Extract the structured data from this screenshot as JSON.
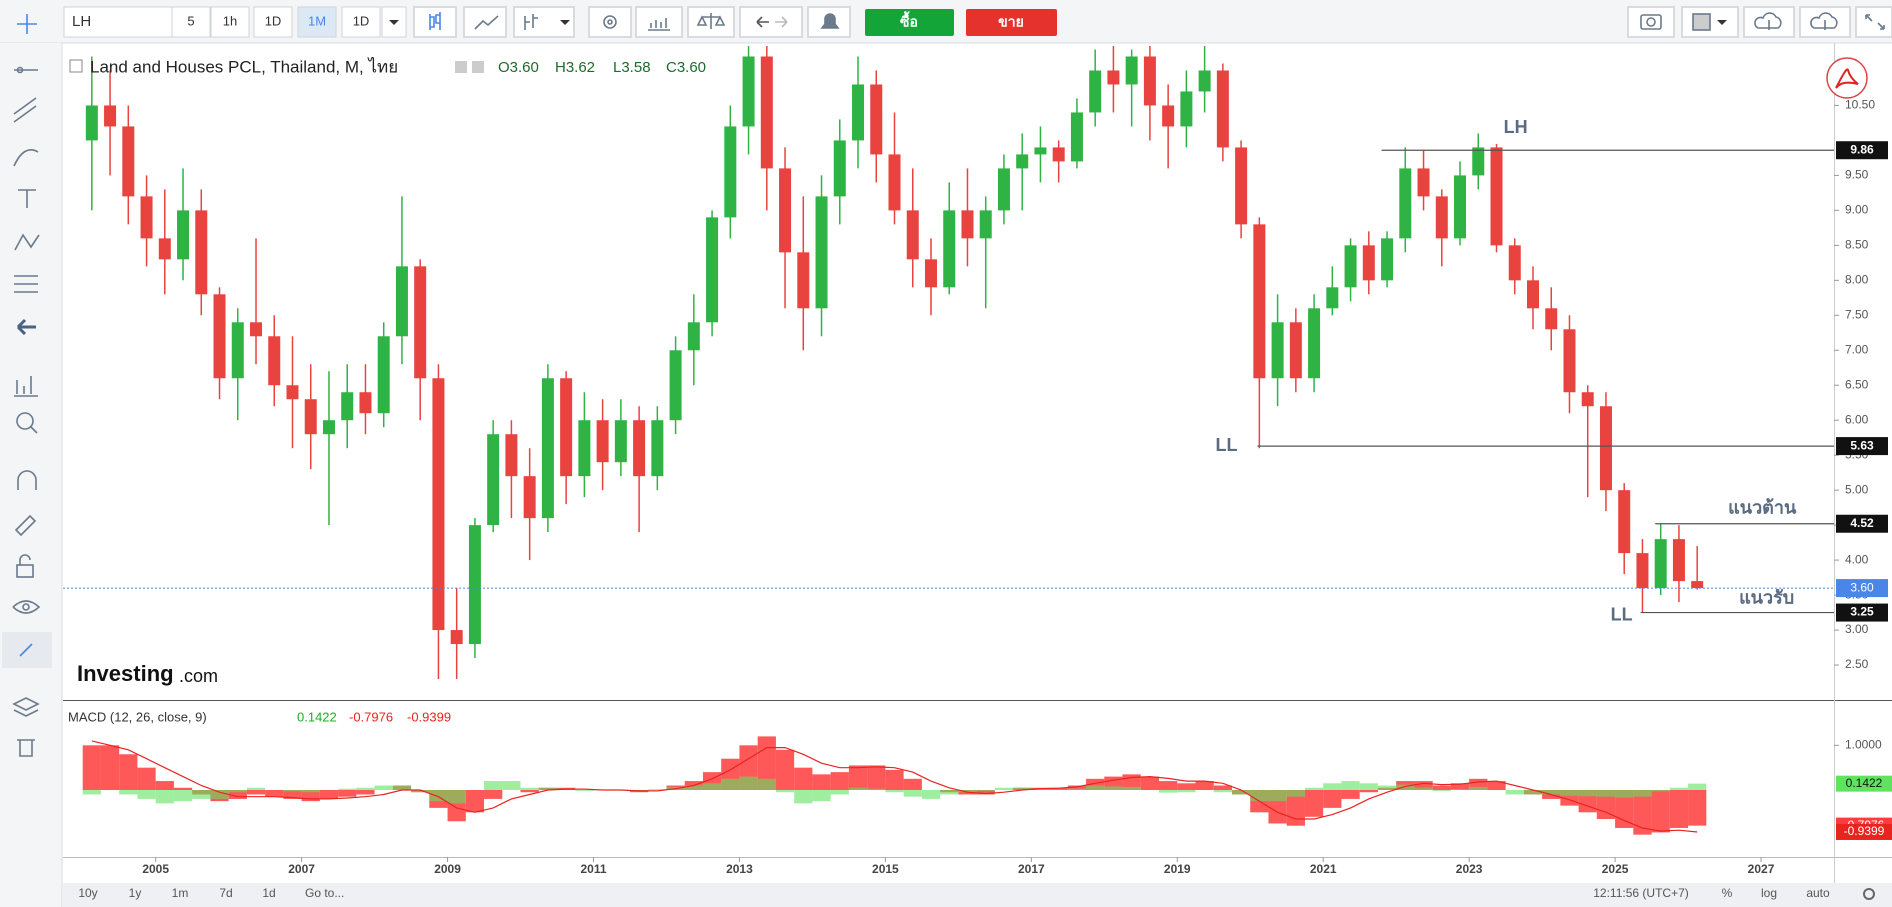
{
  "toolbar": {
    "symbol": "LH",
    "intervals": [
      "5",
      "1h",
      "1D",
      "1M",
      "1D"
    ],
    "buy": "ซื้อ",
    "sell": "ขาย"
  },
  "bottom_bar": {
    "ranges": [
      "10y",
      "1y",
      "1m",
      "7d",
      "1d"
    ],
    "goto": "Go to...",
    "time": "12:11:56 (UTC+7)",
    "options": [
      "%",
      "log",
      "auto"
    ]
  },
  "watermark": [
    "Investing",
    ".com"
  ],
  "chart_data": [
    {
      "type": "candlestick",
      "title": "Land and Houses PCL, Thailand, M, ไทย",
      "legend": [
        "O3.60",
        "H3.62",
        "L3.58",
        "C3.60"
      ],
      "up_color": "#2fb344",
      "down_color": "#e8433f",
      "xlim": [
        2003.73,
        2028.0
      ],
      "xticks": [
        2005,
        2007,
        2009,
        2011,
        2013,
        2015,
        2017,
        2019,
        2021,
        2023,
        2025,
        2027
      ],
      "ylim": [
        2.0,
        11.35
      ],
      "yticks": [
        {
          "value": 2.5,
          "label": "2.50"
        },
        {
          "value": 3,
          "label": "3.00"
        },
        {
          "value": 3.5,
          "label": "3.50"
        },
        {
          "value": 4,
          "label": "4.00"
        },
        {
          "value": 4.5,
          "label": "4.50"
        },
        {
          "value": 5,
          "label": "5.00"
        },
        {
          "value": 5.5,
          "label": "5.50"
        },
        {
          "value": 6,
          "label": "6.00"
        },
        {
          "value": 6.5,
          "label": "6.50"
        },
        {
          "value": 7,
          "label": "7.00"
        },
        {
          "value": 7.5,
          "label": "7.50"
        },
        {
          "value": 8,
          "label": "8.00"
        },
        {
          "value": 8.5,
          "label": "8.50"
        },
        {
          "value": 9,
          "label": "9.00"
        },
        {
          "value": 9.5,
          "label": "9.50"
        },
        {
          "value": 10.5,
          "label": "10.50"
        }
      ],
      "x": [
        2004.125,
        2004.375,
        2004.625,
        2004.875,
        2005.125,
        2005.375,
        2005.625,
        2005.875,
        2006.125,
        2006.375,
        2006.625,
        2006.875,
        2007.125,
        2007.375,
        2007.625,
        2007.875,
        2008.125,
        2008.375,
        2008.625,
        2008.875,
        2009.125,
        2009.375,
        2009.625,
        2009.875,
        2010.125,
        2010.375,
        2010.625,
        2010.875,
        2011.125,
        2011.375,
        2011.625,
        2011.875,
        2012.125,
        2012.375,
        2012.625,
        2012.875,
        2013.125,
        2013.375,
        2013.625,
        2013.875,
        2014.125,
        2014.375,
        2014.625,
        2014.875,
        2015.125,
        2015.375,
        2015.625,
        2015.875,
        2016.125,
        2016.375,
        2016.625,
        2016.875,
        2017.125,
        2017.375,
        2017.625,
        2017.875,
        2018.125,
        2018.375,
        2018.625,
        2018.875,
        2019.125,
        2019.375,
        2019.625,
        2019.875,
        2020.125,
        2020.375,
        2020.625,
        2020.875,
        2021.125,
        2021.375,
        2021.625,
        2021.875,
        2022.125,
        2022.375,
        2022.625,
        2022.875,
        2023.125,
        2023.375,
        2023.625,
        2023.875,
        2024.125,
        2024.375,
        2024.625,
        2024.875,
        2025.125,
        2025.375,
        2025.625,
        2025.875,
        2026.125
      ],
      "open": [
        10.0,
        10.5,
        10.2,
        9.2,
        8.6,
        8.3,
        9.0,
        7.8,
        6.6,
        7.4,
        7.2,
        6.5,
        6.3,
        5.8,
        6.0,
        6.4,
        6.1,
        7.2,
        8.2,
        6.6,
        3.0,
        2.8,
        4.5,
        5.8,
        5.2,
        4.6,
        6.6,
        5.2,
        6.0,
        5.4,
        6.0,
        5.2,
        6.0,
        7.0,
        7.4,
        8.9,
        10.2,
        11.2,
        9.6,
        8.4,
        7.6,
        9.2,
        10.0,
        10.8,
        9.8,
        9.0,
        8.3,
        7.9,
        9.0,
        8.6,
        9.0,
        9.6,
        9.8,
        9.9,
        9.7,
        10.4,
        11.0,
        10.8,
        11.2,
        10.5,
        10.2,
        10.7,
        11.0,
        9.9,
        8.8,
        6.6,
        7.4,
        6.6,
        7.6,
        7.9,
        8.5,
        8.0,
        8.6,
        9.6,
        9.2,
        8.6,
        9.5,
        9.9,
        8.5,
        8.0,
        7.6,
        7.3,
        6.4,
        6.2,
        5.0,
        4.1,
        3.6,
        4.3,
        3.7
      ],
      "high": [
        11.2,
        11.0,
        10.5,
        9.5,
        9.3,
        9.6,
        9.3,
        7.9,
        7.6,
        8.6,
        7.5,
        7.2,
        6.8,
        6.7,
        6.8,
        6.8,
        7.4,
        9.2,
        8.3,
        6.8,
        3.6,
        4.6,
        6.0,
        6.0,
        5.6,
        6.8,
        6.7,
        6.4,
        6.3,
        6.3,
        6.2,
        6.2,
        7.2,
        7.8,
        9.0,
        10.5,
        11.4,
        11.4,
        9.9,
        9.2,
        9.5,
        10.3,
        11.2,
        11.0,
        10.4,
        9.6,
        8.6,
        9.4,
        9.6,
        9.2,
        9.8,
        10.1,
        10.2,
        10.0,
        10.6,
        11.3,
        11.4,
        11.3,
        11.4,
        10.8,
        11.0,
        11.4,
        11.1,
        10.0,
        8.9,
        7.8,
        7.6,
        7.8,
        8.2,
        8.6,
        8.7,
        8.7,
        9.9,
        9.86,
        9.3,
        9.7,
        10.1,
        9.95,
        8.6,
        8.2,
        7.9,
        7.5,
        6.5,
        6.4,
        5.1,
        4.3,
        4.52,
        4.5,
        4.2
      ],
      "low": [
        9.0,
        9.5,
        8.8,
        8.2,
        7.8,
        8.0,
        7.5,
        6.3,
        6.0,
        6.8,
        6.2,
        5.6,
        5.3,
        4.5,
        5.6,
        5.8,
        5.9,
        6.8,
        6.0,
        2.3,
        2.3,
        2.6,
        4.4,
        4.6,
        4.0,
        4.4,
        4.8,
        4.9,
        5.0,
        5.2,
        4.4,
        5.0,
        5.8,
        6.5,
        7.2,
        8.6,
        9.8,
        9.0,
        7.6,
        7.0,
        7.2,
        8.8,
        9.6,
        9.4,
        8.8,
        7.9,
        7.5,
        7.8,
        8.2,
        7.6,
        8.8,
        9.0,
        9.4,
        9.4,
        9.6,
        10.2,
        10.4,
        10.2,
        10.0,
        9.6,
        9.9,
        10.4,
        9.7,
        8.6,
        5.6,
        6.2,
        6.4,
        6.4,
        7.5,
        7.7,
        7.8,
        7.9,
        8.4,
        9.0,
        8.2,
        8.5,
        9.3,
        8.4,
        7.8,
        7.3,
        7.0,
        6.1,
        4.9,
        4.7,
        3.8,
        3.25,
        3.5,
        3.4,
        3.58
      ],
      "close": [
        10.5,
        10.2,
        9.2,
        8.6,
        8.3,
        9.0,
        7.8,
        6.6,
        7.4,
        7.2,
        6.5,
        6.3,
        5.8,
        6.0,
        6.4,
        6.1,
        7.2,
        8.2,
        6.6,
        3.0,
        2.8,
        4.5,
        5.8,
        5.2,
        4.6,
        6.6,
        5.2,
        6.0,
        5.4,
        6.0,
        5.2,
        6.0,
        7.0,
        7.4,
        8.9,
        10.2,
        11.2,
        9.6,
        8.4,
        7.6,
        9.2,
        10.0,
        10.8,
        9.8,
        9.0,
        8.3,
        7.9,
        9.0,
        8.6,
        9.0,
        9.6,
        9.8,
        9.9,
        9.7,
        10.4,
        11.0,
        10.8,
        11.2,
        10.5,
        10.2,
        10.7,
        11.0,
        9.9,
        8.8,
        6.6,
        7.4,
        6.6,
        7.6,
        7.9,
        8.5,
        8.0,
        8.6,
        9.6,
        9.2,
        8.6,
        9.5,
        9.9,
        8.5,
        8.0,
        7.6,
        7.3,
        6.4,
        6.2,
        5.0,
        4.1,
        3.6,
        4.3,
        3.7,
        3.6
      ],
      "current": {
        "value": 3.6,
        "label": "3.60"
      },
      "current_color": "#4a86e8",
      "levels": [
        {
          "value": 9.86,
          "start": 2021.8,
          "notes": [
            "LH"
          ]
        },
        {
          "value": 5.63,
          "start": 2020.1,
          "notes": [
            "LL"
          ]
        },
        {
          "value": 4.52,
          "start": 2025.55,
          "notes": [
            "แนวต้าน"
          ]
        },
        {
          "value": 3.25,
          "start": 2025.35,
          "notes": [
            "LL",
            "แนวรับ"
          ]
        }
      ]
    },
    {
      "type": "macd",
      "title": "MACD (12, 26, close, 9)",
      "ylim": [
        -1.5,
        1.97
      ],
      "yticks": [
        {
          "value": 1,
          "label": "1.0000"
        }
      ],
      "histogram_color": "#5fe35f",
      "macd_color": "#ff3b3b",
      "signal_color": "#e8241f",
      "histogram": [
        -0.1,
        0.0,
        -0.1,
        -0.2,
        -0.3,
        -0.25,
        -0.2,
        -0.2,
        -0.05,
        0.05,
        0.0,
        -0.03,
        -0.05,
        0.0,
        0.03,
        0.05,
        0.1,
        0.1,
        -0.05,
        -0.25,
        -0.3,
        0.0,
        0.2,
        0.2,
        0.05,
        0.05,
        0.03,
        -0.02,
        0.0,
        0.0,
        -0.03,
        0.02,
        0.07,
        0.1,
        0.15,
        0.25,
        0.3,
        0.25,
        -0.05,
        -0.3,
        -0.25,
        -0.1,
        0.05,
        0.03,
        -0.05,
        -0.15,
        -0.2,
        -0.1,
        -0.05,
        -0.02,
        0.05,
        0.05,
        0.02,
        0.01,
        0.03,
        0.1,
        0.08,
        0.07,
        0.0,
        -0.06,
        -0.05,
        0.0,
        -0.05,
        -0.1,
        -0.25,
        -0.25,
        -0.15,
        0.05,
        0.15,
        0.2,
        0.15,
        0.1,
        0.12,
        0.05,
        -0.02,
        0.02,
        0.07,
        0.0,
        -0.1,
        -0.1,
        -0.1,
        -0.13,
        -0.14,
        -0.15,
        -0.17,
        -0.15,
        -0.03,
        0.05,
        0.1422
      ],
      "macd": [
        1.0,
        1.0,
        0.8,
        0.5,
        0.2,
        0.05,
        -0.1,
        -0.25,
        -0.2,
        -0.1,
        -0.15,
        -0.2,
        -0.25,
        -0.2,
        -0.15,
        -0.1,
        0.0,
        0.1,
        -0.05,
        -0.4,
        -0.7,
        -0.5,
        -0.2,
        0.0,
        -0.05,
        0.05,
        0.05,
        0.0,
        0.0,
        0.0,
        -0.05,
        0.0,
        0.1,
        0.2,
        0.4,
        0.7,
        1.0,
        1.2,
        0.9,
        0.5,
        0.35,
        0.4,
        0.55,
        0.55,
        0.45,
        0.25,
        0.0,
        -0.05,
        -0.1,
        -0.1,
        0.0,
        0.05,
        0.05,
        0.05,
        0.1,
        0.25,
        0.3,
        0.35,
        0.3,
        0.2,
        0.15,
        0.2,
        0.1,
        -0.1,
        -0.5,
        -0.75,
        -0.8,
        -0.6,
        -0.4,
        -0.2,
        -0.05,
        0.05,
        0.2,
        0.2,
        0.1,
        0.15,
        0.25,
        0.2,
        0.0,
        -0.1,
        -0.2,
        -0.35,
        -0.5,
        -0.65,
        -0.85,
        -1.0,
        -0.95,
        -0.85,
        -0.7976
      ],
      "signal": [
        1.1,
        1.0,
        0.9,
        0.7,
        0.5,
        0.3,
        0.1,
        -0.05,
        -0.15,
        -0.15,
        -0.15,
        -0.17,
        -0.2,
        -0.2,
        -0.18,
        -0.15,
        -0.1,
        0.0,
        0.0,
        -0.15,
        -0.4,
        -0.5,
        -0.4,
        -0.2,
        -0.1,
        0.0,
        0.02,
        0.02,
        0.0,
        0.0,
        -0.02,
        -0.02,
        0.03,
        0.1,
        0.25,
        0.45,
        0.7,
        0.95,
        0.95,
        0.8,
        0.6,
        0.5,
        0.5,
        0.52,
        0.5,
        0.4,
        0.2,
        0.05,
        -0.05,
        -0.08,
        -0.05,
        0.0,
        0.03,
        0.04,
        0.07,
        0.15,
        0.22,
        0.28,
        0.3,
        0.26,
        0.2,
        0.2,
        0.15,
        0.0,
        -0.25,
        -0.5,
        -0.65,
        -0.65,
        -0.55,
        -0.4,
        -0.2,
        -0.05,
        0.08,
        0.15,
        0.12,
        0.13,
        0.18,
        0.2,
        0.1,
        0.0,
        -0.1,
        -0.22,
        -0.36,
        -0.5,
        -0.68,
        -0.85,
        -0.92,
        -0.9,
        -0.9399
      ]
    }
  ]
}
